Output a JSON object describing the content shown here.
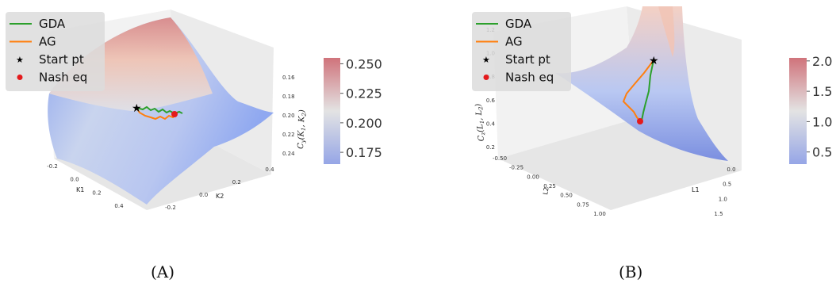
{
  "colors": {
    "gda": "#2ca02c",
    "ag": "#ff7f0e",
    "start": "#000000",
    "nash": "#e41a1c",
    "cmap_low": "#7b8fe0",
    "cmap_mid": "#dcdcdc",
    "cmap_high": "#c4505a"
  },
  "legend_labels": [
    "GDA",
    "AG",
    "Start pt",
    "Nash eq"
  ],
  "chart_data": [
    {
      "type": "surface",
      "caption": "(A)",
      "xlabel": "K1",
      "ylabel": "K2",
      "zlabel": "C_y(K_1, K_2)",
      "xticks": [
        "-0.2",
        "0.0",
        "0.2",
        "0.4"
      ],
      "yticks": [
        "-0.2",
        "0.0",
        "0.2",
        "0.4"
      ],
      "zticks": [
        "0.16",
        "0.18",
        "0.20",
        "0.22",
        "0.24"
      ],
      "colorbar": {
        "min": 0.165,
        "max": 0.255,
        "ticks": [
          "0.250",
          "0.225",
          "0.200",
          "0.175"
        ],
        "tick_values": [
          0.25,
          0.225,
          0.2,
          0.175
        ]
      },
      "legend": [
        "GDA",
        "AG",
        "Start pt",
        "Nash eq"
      ]
    },
    {
      "type": "surface",
      "caption": "(B)",
      "xlabel": "L1",
      "ylabel": "L2",
      "zlabel": "C_z(L_1, L_2)",
      "xticks": [
        "0.0",
        "0.5",
        "1.0",
        "1.5"
      ],
      "yticks": [
        "-0.50",
        "-0.25",
        "0.00",
        "0.25",
        "0.50",
        "0.75",
        "1.00"
      ],
      "zticks": [
        "0.2",
        "0.4",
        "0.6",
        "0.8",
        "1.0",
        "1.2"
      ],
      "colorbar": {
        "min": 0.3,
        "max": 2.05,
        "ticks": [
          "2.0",
          "1.5",
          "1.0",
          "0.5"
        ],
        "tick_values": [
          2.0,
          1.5,
          1.0,
          0.5
        ]
      },
      "legend": [
        "GDA",
        "AG",
        "Start pt",
        "Nash eq"
      ]
    }
  ]
}
